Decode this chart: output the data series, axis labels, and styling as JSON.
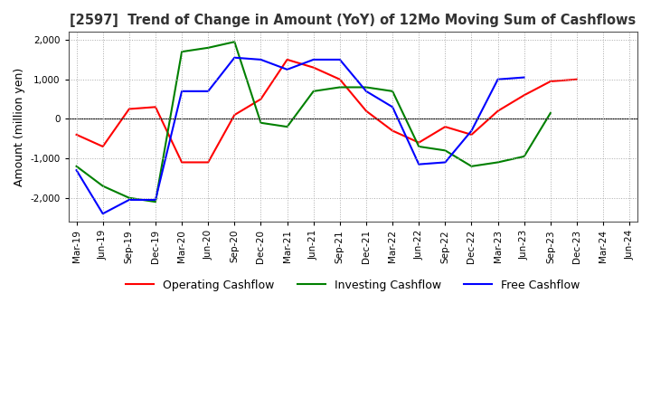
{
  "title": "[2597]  Trend of Change in Amount (YoY) of 12Mo Moving Sum of Cashflows",
  "ylabel": "Amount (million yen)",
  "ylim": [
    -2600,
    2200
  ],
  "yticks": [
    -2000,
    -1000,
    0,
    1000,
    2000
  ],
  "x_labels": [
    "Mar-19",
    "Jun-19",
    "Sep-19",
    "Dec-19",
    "Mar-20",
    "Jun-20",
    "Sep-20",
    "Dec-20",
    "Mar-21",
    "Jun-21",
    "Sep-21",
    "Dec-21",
    "Mar-22",
    "Jun-22",
    "Sep-22",
    "Dec-22",
    "Mar-23",
    "Jun-23",
    "Sep-23",
    "Dec-23",
    "Mar-24",
    "Jun-24"
  ],
  "operating": [
    -400,
    -700,
    250,
    300,
    -1100,
    -1100,
    100,
    500,
    1500,
    1300,
    1000,
    200,
    -300,
    -600,
    -200,
    -400,
    200,
    600,
    950,
    1000,
    null,
    null
  ],
  "investing": [
    -1200,
    -1700,
    -2000,
    -2100,
    1700,
    1800,
    1950,
    -100,
    -200,
    700,
    800,
    800,
    700,
    -700,
    -800,
    -1200,
    -1100,
    -950,
    150,
    null,
    null,
    null
  ],
  "free": [
    -1300,
    -2400,
    -2050,
    -2050,
    700,
    700,
    1550,
    1500,
    1250,
    1500,
    1500,
    700,
    300,
    -1150,
    -1100,
    -300,
    1000,
    1050,
    null,
    null,
    null,
    null
  ],
  "operating_color": "#ff0000",
  "investing_color": "#008000",
  "free_color": "#0000ff",
  "title_color": "#333333",
  "background_color": "#ffffff",
  "grid_color": "#aaaaaa",
  "grid_style": ":"
}
